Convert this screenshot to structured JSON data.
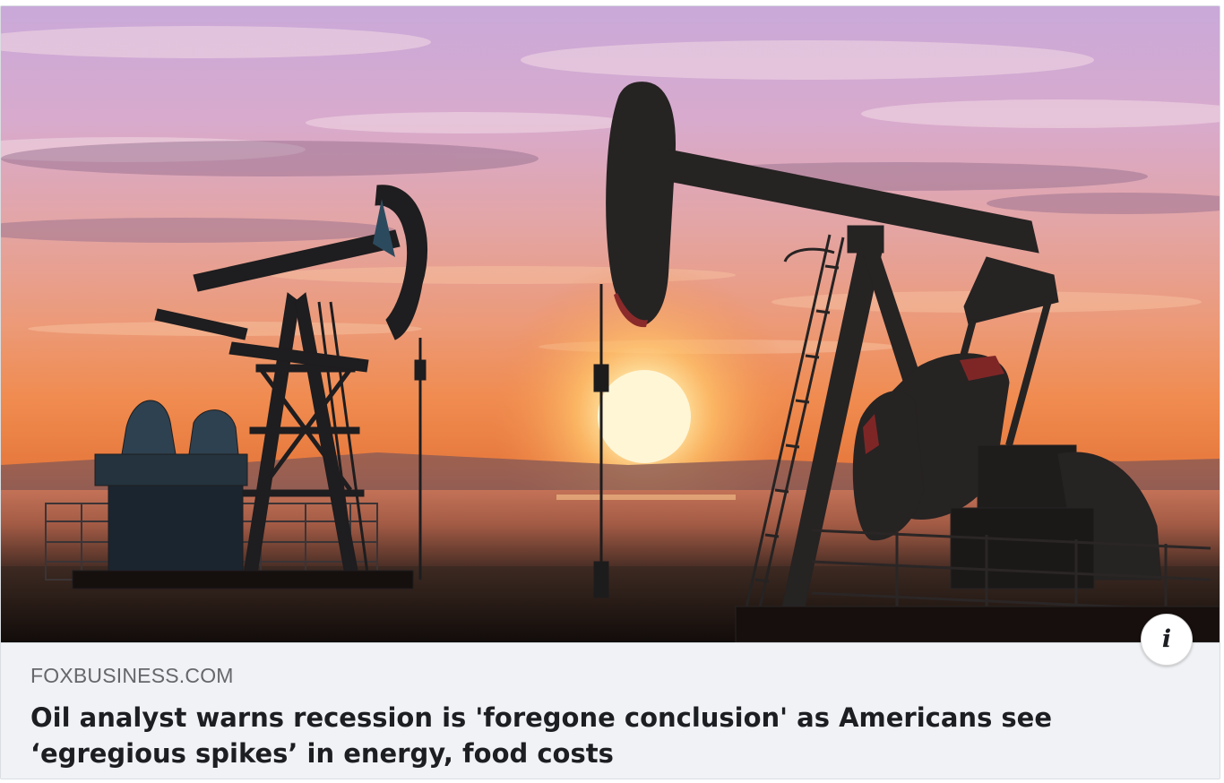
{
  "link_preview": {
    "domain": "FOXBUSINESS.COM",
    "headline": "Oil analyst warns recession is 'foregone conclusion' as Americans see ‘egregious spikes’ in energy, food costs",
    "info_glyph": "i",
    "info_icon": "info-icon",
    "image_subject": "oil pump jacks silhouetted at sunset"
  },
  "colors": {
    "caption_bg": "#f0f2f5",
    "domain_text": "#65676b",
    "headline_text": "#1c1e21"
  }
}
